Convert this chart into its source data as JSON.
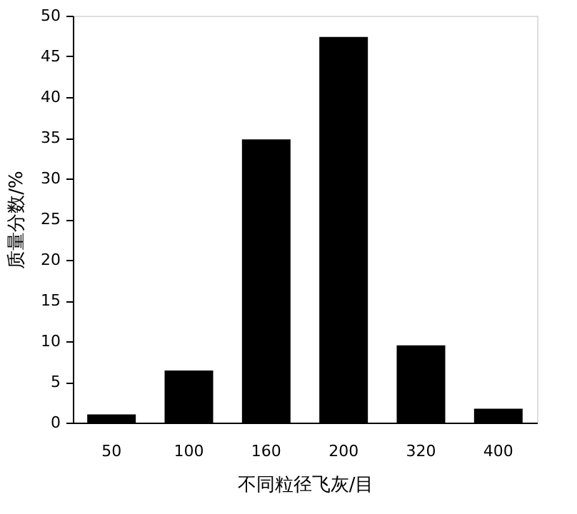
{
  "chart_data": {
    "type": "bar",
    "xlabel": "不同粒径飞灰/目",
    "ylabel": "质量分数/%",
    "categories": [
      "50",
      "100",
      "160",
      "200",
      "320",
      "400"
    ],
    "values": [
      1.0,
      6.4,
      34.8,
      47.4,
      9.5,
      1.7
    ],
    "color": "#000000",
    "ylim": [
      0,
      50
    ],
    "yticks": [
      0,
      5,
      10,
      15,
      20,
      25,
      30,
      35,
      40,
      45,
      50
    ],
    "grid": false
  }
}
